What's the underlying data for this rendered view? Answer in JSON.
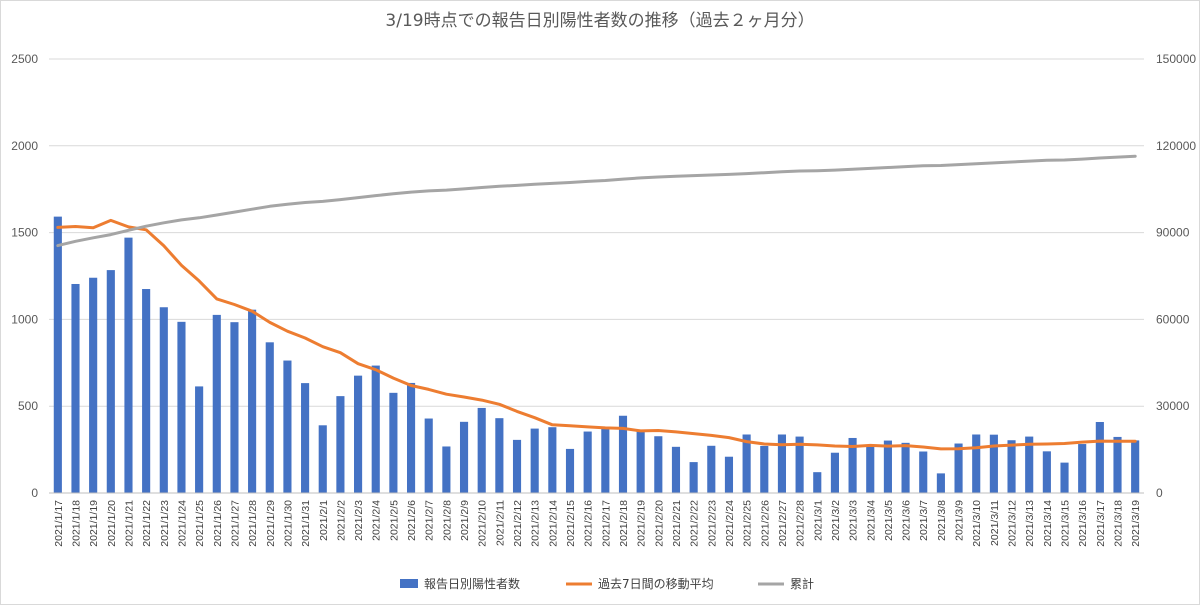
{
  "chart_data": {
    "type": "bar",
    "title": "3/19時点での報告日別陽性者数の推移（過去２ヶ月分）",
    "ylim_left": [
      0,
      2500
    ],
    "yticks_left": [
      "0",
      "500",
      "1000",
      "1500",
      "2000",
      "2500"
    ],
    "ylim_right": [
      0,
      150000
    ],
    "yticks_right": [
      "0",
      "30000",
      "60000",
      "90000",
      "120000",
      "150000"
    ],
    "grid": true,
    "legend_position": "bottom",
    "categories": [
      "2021/1/17",
      "2021/1/18",
      "2021/1/19",
      "2021/1/20",
      "2021/1/21",
      "2021/1/22",
      "2021/1/23",
      "2021/1/24",
      "2021/1/25",
      "2021/1/26",
      "2021/1/27",
      "2021/1/28",
      "2021/1/29",
      "2021/1/30",
      "2021/1/31",
      "2021/2/1",
      "2021/2/2",
      "2021/2/3",
      "2021/2/4",
      "2021/2/5",
      "2021/2/6",
      "2021/2/7",
      "2021/2/8",
      "2021/2/9",
      "2021/2/10",
      "2021/2/11",
      "2021/2/12",
      "2021/2/13",
      "2021/2/14",
      "2021/2/15",
      "2021/2/16",
      "2021/2/17",
      "2021/2/18",
      "2021/2/19",
      "2021/2/20",
      "2021/2/21",
      "2021/2/22",
      "2021/2/23",
      "2021/2/24",
      "2021/2/25",
      "2021/2/26",
      "2021/2/27",
      "2021/2/28",
      "2021/3/1",
      "2021/3/2",
      "2021/3/3",
      "2021/3/4",
      "2021/3/5",
      "2021/3/6",
      "2021/3/7",
      "2021/3/8",
      "2021/3/9",
      "2021/3/10",
      "2021/3/11",
      "2021/3/12",
      "2021/3/13",
      "2021/3/14",
      "2021/3/15",
      "2021/3/16",
      "2021/3/17",
      "2021/3/18",
      "2021/3/19"
    ],
    "series": [
      {
        "name": "報告日別陽性者数",
        "kind": "bar",
        "axis": "left",
        "color": "#4472c4",
        "values": [
          1592,
          1204,
          1240,
          1284,
          1471,
          1175,
          1070,
          986,
          614,
          1026,
          984,
          1056,
          868,
          763,
          633,
          390,
          558,
          676,
          734,
          577,
          634,
          429,
          268,
          410,
          490,
          431,
          306,
          371,
          379,
          254,
          354,
          372,
          445,
          365,
          327,
          266,
          178,
          272,
          209,
          337,
          271,
          337,
          325,
          120,
          232,
          317,
          271,
          302,
          289,
          239,
          113,
          285,
          337,
          336,
          304,
          325,
          240,
          175,
          282,
          409,
          323,
          303
        ]
      },
      {
        "name": "過去7日間の移動平均",
        "kind": "line",
        "axis": "left",
        "color": "#ed7d31",
        "values": [
          1530,
          1535,
          1528,
          1570,
          1533,
          1516,
          1424,
          1311,
          1222,
          1118,
          1086,
          1047,
          983,
          932,
          893,
          843,
          808,
          745,
          710,
          662,
          619,
          597,
          569,
          553,
          535,
          511,
          470,
          434,
          393,
          387,
          381,
          375,
          372,
          358,
          360,
          352,
          342,
          332,
          319,
          296,
          282,
          278,
          281,
          277,
          271,
          268,
          274,
          270,
          273,
          265,
          254,
          255,
          261,
          271,
          276,
          281,
          282,
          285,
          293,
          299,
          298,
          298
        ]
      },
      {
        "name": "累計",
        "kind": "line",
        "axis": "right",
        "color": "#a5a5a5",
        "values": [
          85500,
          87000,
          88200,
          89300,
          90800,
          92200,
          93400,
          94400,
          95100,
          96100,
          97100,
          98100,
          99100,
          99800,
          100400,
          100800,
          101400,
          102100,
          102800,
          103400,
          104000,
          104400,
          104700,
          105100,
          105600,
          106000,
          106300,
          106700,
          107000,
          107300,
          107700,
          108000,
          108500,
          108900,
          109200,
          109500,
          109700,
          109900,
          110100,
          110400,
          110700,
          111000,
          111300,
          111400,
          111600,
          111900,
          112200,
          112500,
          112800,
          113100,
          113200,
          113500,
          113800,
          114100,
          114400,
          114700,
          115000,
          115100,
          115400,
          115800,
          116100,
          116400
        ]
      }
    ]
  }
}
